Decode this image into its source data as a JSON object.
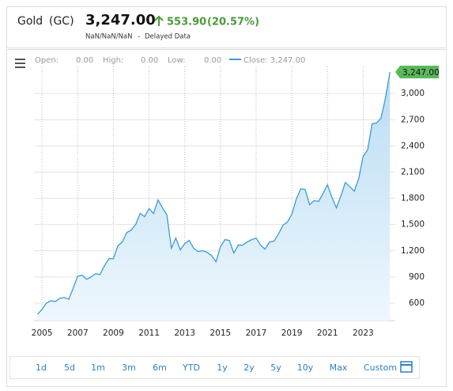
{
  "header": {
    "name": "Gold",
    "symbol": "(GC)",
    "price": "3,247.00",
    "change": "553.90",
    "change_pct": "(20.57%)",
    "date": "NaN/NaN/NaN",
    "separator": "-",
    "status": "Delayed Data"
  },
  "ohlc": [
    {
      "label": "Open:",
      "value": "0.00"
    },
    {
      "label": "High:",
      "value": "0.00"
    },
    {
      "label": "Low:",
      "value": "0.00"
    }
  ],
  "chart_data": {
    "type": "area",
    "x": [
      2004.75,
      2005,
      2005.25,
      2005.5,
      2005.75,
      2006,
      2006.25,
      2006.5,
      2006.75,
      2007,
      2007.25,
      2007.5,
      2007.75,
      2008,
      2008.25,
      2008.5,
      2008.75,
      2009,
      2009.25,
      2009.5,
      2009.75,
      2010,
      2010.25,
      2010.5,
      2010.75,
      2011,
      2011.25,
      2011.5,
      2011.75,
      2012,
      2012.25,
      2012.5,
      2012.75,
      2013,
      2013.25,
      2013.5,
      2013.75,
      2014,
      2014.25,
      2014.5,
      2014.75,
      2015,
      2015.25,
      2015.5,
      2015.75,
      2016,
      2016.25,
      2016.5,
      2016.75,
      2017,
      2017.25,
      2017.5,
      2017.75,
      2018,
      2018.25,
      2018.5,
      2018.75,
      2019,
      2019.25,
      2019.5,
      2019.75,
      2020,
      2020.25,
      2020.5,
      2020.75,
      2021,
      2021.25,
      2021.5,
      2021.75,
      2022,
      2022.25,
      2022.5,
      2022.75,
      2023,
      2023.25,
      2023.5,
      2023.75,
      2024,
      2024.25,
      2024.5
    ],
    "series": [
      {
        "name": "Close: 3,247.00",
        "color": "#3a9ad9",
        "values": [
          473,
          527,
          600,
          627,
          618,
          655,
          664,
          645,
          773,
          909,
          918,
          873,
          900,
          936,
          927,
          1027,
          1109,
          1109,
          1255,
          1300,
          1409,
          1436,
          1500,
          1627,
          1591,
          1682,
          1627,
          1782,
          1691,
          1609,
          1227,
          1345,
          1209,
          1282,
          1318,
          1227,
          1191,
          1200,
          1182,
          1145,
          1073,
          1245,
          1327,
          1318,
          1173,
          1264,
          1264,
          1300,
          1327,
          1345,
          1264,
          1218,
          1300,
          1309,
          1391,
          1491,
          1527,
          1618,
          1791,
          1909,
          1900,
          1727,
          1773,
          1764,
          1855,
          1955,
          1809,
          1691,
          1827,
          1982,
          1936,
          1882,
          2027,
          2282,
          2355,
          2655,
          2664,
          2718,
          2950,
          3247
        ]
      }
    ],
    "last_label": "3,247.00",
    "xlim": [
      2004.55,
      2024.8
    ],
    "xticks": [
      2005,
      2007,
      2009,
      2011,
      2013,
      2015,
      2017,
      2019,
      2021,
      2023
    ],
    "ylim": [
      400,
      3310
    ],
    "yticks": [
      600,
      900,
      {
        "value": 1200,
        "label": "1,200"
      },
      {
        "value": 1500,
        "label": "1,500"
      },
      {
        "value": 1800,
        "label": "1,800"
      },
      {
        "value": 2100,
        "label": "2,100"
      },
      {
        "value": 2400,
        "label": "2,400"
      },
      {
        "value": 2700,
        "label": "2,700"
      },
      {
        "value": 3000,
        "label": "3,000"
      }
    ],
    "grid": true
  },
  "ranges": [
    "1d",
    "5d",
    "1m",
    "3m",
    "6m",
    "YTD",
    "1y",
    "2y",
    "5y",
    "10y",
    "Max",
    "Custom"
  ]
}
